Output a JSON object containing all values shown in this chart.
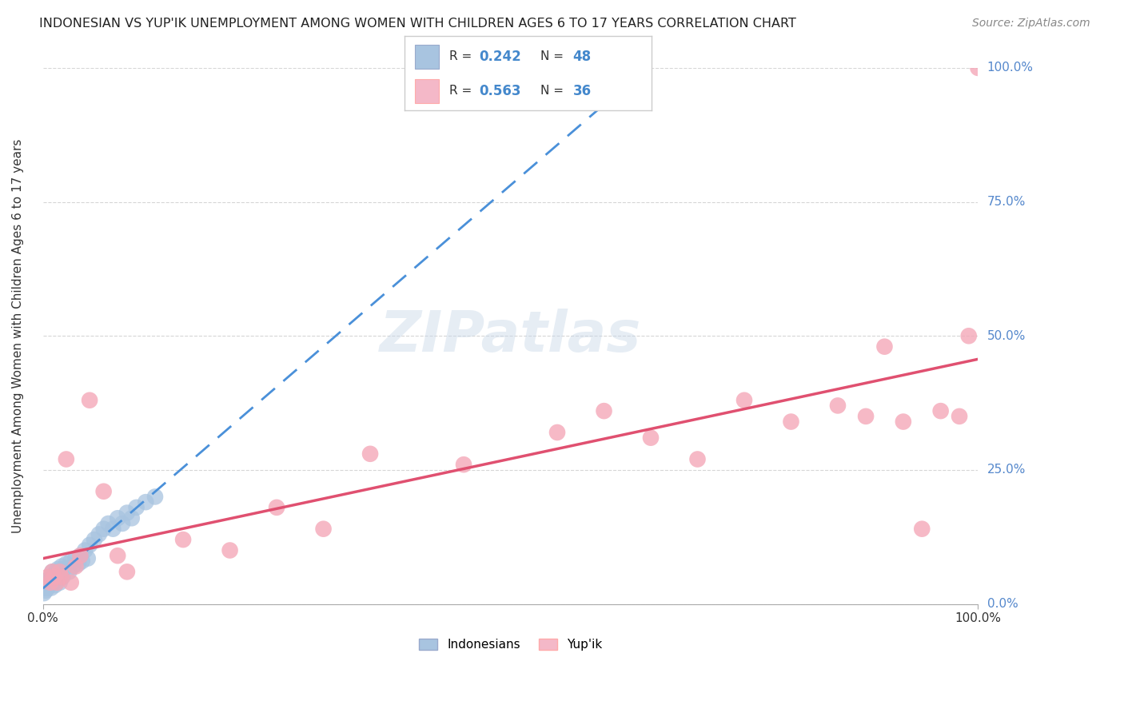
{
  "title": "INDONESIAN VS YUP'IK UNEMPLOYMENT AMONG WOMEN WITH CHILDREN AGES 6 TO 17 YEARS CORRELATION CHART",
  "source": "Source: ZipAtlas.com",
  "ylabel": "Unemployment Among Women with Children Ages 6 to 17 years",
  "xlim": [
    0.0,
    1.0
  ],
  "ylim": [
    0.0,
    1.0
  ],
  "xtick_labels": [
    "0.0%",
    "100.0%"
  ],
  "ytick_labels": [
    "0.0%",
    "25.0%",
    "50.0%",
    "75.0%",
    "100.0%"
  ],
  "ytick_positions": [
    0.0,
    0.25,
    0.5,
    0.75,
    1.0
  ],
  "grid_color": "#cccccc",
  "background_color": "#ffffff",
  "indonesian_R": "0.242",
  "indonesian_N": "48",
  "yupik_R": "0.563",
  "yupik_N": "36",
  "indonesian_color": "#a8c4e0",
  "yupik_color": "#f4a8b8",
  "indonesian_line_color": "#4a90d9",
  "yupik_line_color": "#e05070",
  "legend_color_indonesian": "#a8c4e0",
  "legend_color_yupik": "#f4b8c8",
  "indonesian_points_x": [
    0.001,
    0.002,
    0.003,
    0.004,
    0.005,
    0.005,
    0.006,
    0.007,
    0.008,
    0.008,
    0.009,
    0.01,
    0.01,
    0.011,
    0.012,
    0.013,
    0.014,
    0.015,
    0.016,
    0.017,
    0.018,
    0.019,
    0.02,
    0.021,
    0.022,
    0.025,
    0.028,
    0.03,
    0.032,
    0.035,
    0.038,
    0.04,
    0.042,
    0.045,
    0.048,
    0.05,
    0.055,
    0.06,
    0.065,
    0.07,
    0.075,
    0.08,
    0.085,
    0.09,
    0.095,
    0.1,
    0.11,
    0.12
  ],
  "indonesian_points_y": [
    0.02,
    0.03,
    0.025,
    0.035,
    0.04,
    0.03,
    0.045,
    0.035,
    0.04,
    0.05,
    0.03,
    0.05,
    0.06,
    0.04,
    0.055,
    0.035,
    0.06,
    0.05,
    0.065,
    0.055,
    0.04,
    0.06,
    0.07,
    0.05,
    0.065,
    0.075,
    0.06,
    0.08,
    0.07,
    0.085,
    0.075,
    0.09,
    0.08,
    0.1,
    0.085,
    0.11,
    0.12,
    0.13,
    0.14,
    0.15,
    0.14,
    0.16,
    0.15,
    0.17,
    0.16,
    0.18,
    0.19,
    0.2
  ],
  "yupik_points_x": [
    0.005,
    0.008,
    0.01,
    0.012,
    0.015,
    0.018,
    0.02,
    0.025,
    0.03,
    0.035,
    0.04,
    0.05,
    0.065,
    0.08,
    0.09,
    0.15,
    0.2,
    0.25,
    0.3,
    0.35,
    0.45,
    0.55,
    0.6,
    0.65,
    0.7,
    0.75,
    0.8,
    0.85,
    0.88,
    0.9,
    0.92,
    0.94,
    0.96,
    0.98,
    0.99,
    1.0
  ],
  "yupik_points_y": [
    0.05,
    0.04,
    0.06,
    0.05,
    0.04,
    0.06,
    0.05,
    0.27,
    0.04,
    0.07,
    0.09,
    0.38,
    0.21,
    0.09,
    0.06,
    0.12,
    0.1,
    0.18,
    0.14,
    0.28,
    0.26,
    0.32,
    0.36,
    0.31,
    0.27,
    0.38,
    0.34,
    0.37,
    0.35,
    0.48,
    0.34,
    0.14,
    0.36,
    0.35,
    0.5,
    1.0
  ]
}
